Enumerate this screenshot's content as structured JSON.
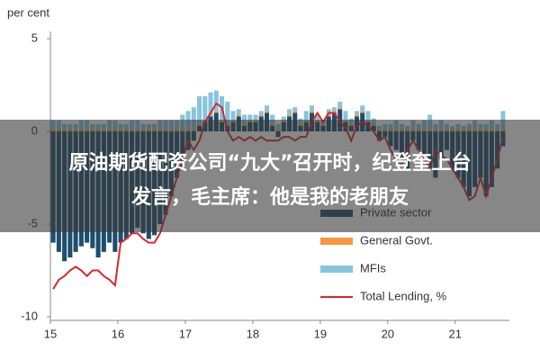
{
  "chart_data": {
    "type": "bar",
    "y_label": "per cent",
    "categories": [
      "15",
      null,
      null,
      null,
      null,
      null,
      null,
      null,
      null,
      null,
      null,
      null,
      "16",
      null,
      null,
      null,
      null,
      null,
      null,
      null,
      null,
      null,
      null,
      null,
      "17",
      null,
      null,
      null,
      null,
      null,
      null,
      null,
      null,
      null,
      null,
      null,
      "18",
      null,
      null,
      null,
      null,
      null,
      null,
      null,
      null,
      null,
      null,
      null,
      "19",
      null,
      null,
      null,
      null,
      null,
      null,
      null,
      null,
      null,
      null,
      null,
      "20",
      null,
      null,
      null,
      null,
      null,
      null,
      null,
      null,
      null,
      null,
      null,
      "21",
      null,
      null,
      null,
      null,
      null,
      null,
      null,
      null
    ],
    "ylim": [
      -10,
      5
    ],
    "yticks": [
      -10,
      -5,
      0,
      5
    ],
    "stacked": true,
    "series": [
      {
        "name": "Private sector",
        "color": "#1d4e6e",
        "values": [
          -6,
          -6.5,
          -7,
          -6.8,
          -6.5,
          -6.2,
          -6,
          -6.3,
          -6.8,
          -6.5,
          -6,
          -6.5,
          -6,
          -5.8,
          -5.5,
          -5.2,
          -5.5,
          -5.8,
          -5.6,
          -5,
          -4.5,
          -3.5,
          -2.5,
          -2,
          -1,
          -0.5,
          0.3,
          0.5,
          0.8,
          1,
          0.5,
          0.3,
          0.5,
          0.8,
          0.3,
          0.5,
          0.5,
          0.8,
          1,
          0.3,
          -0.3,
          0.5,
          0.8,
          1,
          0.3,
          0.5,
          1,
          0.5,
          0.3,
          0.8,
          1,
          1.2,
          0.5,
          0.3,
          0.8,
          1,
          0.5,
          0.3,
          -0.5,
          -0.3,
          -0.8,
          -1,
          -1.5,
          -2,
          -0.5,
          -1,
          -1.5,
          -2,
          -2.5,
          -1.5,
          -1,
          -2,
          -2.5,
          -3,
          -3.5,
          -3,
          -2.5,
          -3.5,
          -3,
          -2,
          -0.8
        ]
      },
      {
        "name": "General Govt.",
        "color": "#f7963e",
        "values": [
          0.1,
          0.1,
          0.1,
          0.1,
          0.1,
          0.1,
          0.1,
          0.1,
          0.1,
          0.1,
          0.1,
          0.1,
          0.1,
          0.1,
          0.1,
          0.1,
          0.1,
          0.1,
          0.1,
          0.1,
          0.1,
          0.1,
          0.1,
          0.1,
          0.1,
          0.1,
          0.1,
          0.1,
          0.1,
          0.1,
          0.1,
          0.1,
          0.1,
          0.1,
          0.1,
          0.1,
          0.1,
          0.1,
          0.1,
          0.1,
          0.1,
          0.1,
          0.1,
          0.1,
          0.1,
          0.1,
          0.1,
          0.1,
          0.1,
          0.1,
          0.1,
          0.1,
          0.1,
          0.1,
          0.1,
          0.1,
          0.1,
          0.1,
          0.1,
          0.1,
          0.1,
          0.1,
          0.1,
          0.1,
          0.1,
          0.1,
          0.1,
          0.1,
          0.1,
          0.1,
          0.1,
          0.1,
          0.1,
          0.1,
          0.1,
          0.1,
          0.1,
          0.1,
          0.1,
          0.1,
          0.1
        ]
      },
      {
        "name": "MFIs",
        "color": "#86c5de",
        "values": [
          0.5,
          0.5,
          0.3,
          0.3,
          0.3,
          0.5,
          0.5,
          0.3,
          0.3,
          0.3,
          0.5,
          0.5,
          0.3,
          0.3,
          0.5,
          0.5,
          0.3,
          0.3,
          0.3,
          0.5,
          0.5,
          0.5,
          0.5,
          0.8,
          1,
          1.2,
          1.5,
          1.3,
          1.2,
          1.1,
          1.3,
          1.2,
          0.5,
          0.3,
          0.5,
          0.3,
          0.3,
          0.2,
          0.3,
          0.5,
          0.3,
          0.2,
          0.3,
          0.2,
          0.3,
          0.5,
          0.3,
          0.3,
          0.2,
          0.3,
          0.2,
          0.3,
          0.5,
          0.3,
          0.2,
          0.3,
          0.5,
          0.3,
          0.2,
          0.3,
          0.3,
          0.5,
          0.3,
          0.2,
          0.5,
          0.3,
          0.5,
          0.8,
          0.3,
          0.5,
          0.3,
          0.2,
          0.3,
          0.2,
          0.3,
          0.5,
          0.3,
          0.3,
          0.5,
          0.3,
          1
        ]
      },
      {
        "name": "Total Lending, %",
        "color": "#d7282f",
        "type": "line",
        "values": [
          -8.5,
          -8,
          -7.8,
          -7.5,
          -7.3,
          -7.5,
          -7.8,
          -7.5,
          -7.5,
          -7.8,
          -8,
          -8.3,
          -6,
          -5.8,
          -5.5,
          -5.5,
          -5.8,
          -6,
          -6,
          -5.5,
          -4.5,
          -3.5,
          -2.5,
          -1.5,
          -0.5,
          -1,
          -0.5,
          0.5,
          1,
          1.5,
          1.3,
          0,
          -0.5,
          -0.3,
          -0.5,
          -0.3,
          -0.5,
          -0.3,
          -0.5,
          -0.5,
          -0.5,
          -0.3,
          -0.3,
          -0.5,
          -0.3,
          -0.3,
          0.5,
          1,
          0.5,
          1,
          1,
          0.5,
          0.2,
          -0.5,
          0.3,
          0.5,
          0.3,
          0,
          -0.5,
          -0.3,
          -1,
          -1.5,
          -1.8,
          -1,
          -0.5,
          -1,
          -1.5,
          -2,
          -1,
          -1.3,
          -1.5,
          -2,
          -2.5,
          -3,
          -3.7,
          -3.5,
          -2.5,
          -3.5,
          -2.5,
          -1.5,
          -0.3
        ]
      }
    ]
  },
  "overlay": {
    "lines": [
      "原油期货配资公司“九大”召开时，纪登奎上台",
      "发言，毛主席：他是我的老朋友"
    ]
  }
}
